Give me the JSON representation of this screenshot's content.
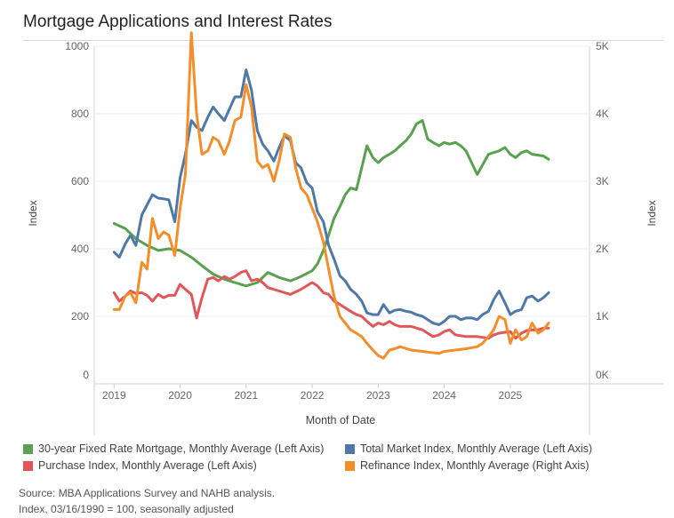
{
  "chart_data": {
    "type": "line",
    "title": "Mortgage Applications and Interest Rates",
    "xlabel": "Month of Date",
    "ylabel_left": "Index",
    "ylabel_right": "Index",
    "x_ticks": [
      "2019",
      "2020",
      "2021",
      "2022",
      "2023",
      "2024",
      "2025"
    ],
    "x_tick_values": [
      2019.0,
      2020.0,
      2021.0,
      2022.0,
      2023.0,
      2024.0,
      2025.0
    ],
    "xlim": [
      2018.7,
      2026.2
    ],
    "y_left_ticks": [
      "0",
      "200",
      "400",
      "600",
      "800",
      "1000"
    ],
    "y_left_tick_values": [
      0,
      200,
      400,
      600,
      800,
      1000
    ],
    "ylim_left": [
      0,
      1000
    ],
    "y_right_ticks": [
      "0K",
      "1K",
      "2K",
      "3K",
      "4K",
      "5K"
    ],
    "y_right_tick_values": [
      0,
      1000,
      2000,
      3000,
      4000,
      5000
    ],
    "ylim_right": [
      0,
      5000
    ],
    "grid": true,
    "legend_position": "bottom",
    "series": [
      {
        "name": "30-year Fixed Rate Mortgage, Monthly Average (Left Axis)",
        "axis": "left",
        "color": "#59a14f",
        "x": [
          2019.0,
          2019.17,
          2019.33,
          2019.5,
          2019.67,
          2019.83,
          2020.0,
          2020.17,
          2020.33,
          2020.5,
          2020.67,
          2020.83,
          2021.0,
          2021.17,
          2021.33,
          2021.5,
          2021.67,
          2021.83,
          2022.0,
          2022.08,
          2022.17,
          2022.25,
          2022.33,
          2022.42,
          2022.5,
          2022.58,
          2022.67,
          2022.75,
          2022.83,
          2022.92,
          2023.0,
          2023.08,
          2023.17,
          2023.25,
          2023.33,
          2023.42,
          2023.5,
          2023.58,
          2023.67,
          2023.75,
          2023.83,
          2023.92,
          2024.0,
          2024.08,
          2024.17,
          2024.25,
          2024.33,
          2024.5,
          2024.67,
          2024.83,
          2024.92,
          2025.0,
          2025.08,
          2025.17,
          2025.25,
          2025.33,
          2025.5,
          2025.58
        ],
        "values": [
          475,
          460,
          430,
          410,
          395,
          400,
          395,
          375,
          350,
          325,
          310,
          300,
          290,
          300,
          330,
          315,
          305,
          318,
          335,
          355,
          395,
          440,
          490,
          525,
          560,
          580,
          575,
          640,
          705,
          670,
          655,
          670,
          680,
          690,
          705,
          720,
          740,
          770,
          780,
          725,
          715,
          705,
          715,
          710,
          715,
          705,
          690,
          620,
          680,
          690,
          700,
          680,
          670,
          685,
          690,
          680,
          675,
          665
        ]
      },
      {
        "name": "Total Market Index, Monthly Average (Left Axis)",
        "axis": "left",
        "color": "#4e79a7",
        "x": [
          2019.0,
          2019.08,
          2019.17,
          2019.25,
          2019.33,
          2019.42,
          2019.5,
          2019.58,
          2019.67,
          2019.75,
          2019.83,
          2019.92,
          2020.0,
          2020.08,
          2020.17,
          2020.25,
          2020.33,
          2020.42,
          2020.5,
          2020.58,
          2020.67,
          2020.75,
          2020.83,
          2020.92,
          2021.0,
          2021.08,
          2021.17,
          2021.25,
          2021.33,
          2021.42,
          2021.5,
          2021.58,
          2021.67,
          2021.75,
          2021.83,
          2021.92,
          2022.0,
          2022.08,
          2022.17,
          2022.25,
          2022.33,
          2022.42,
          2022.5,
          2022.58,
          2022.67,
          2022.75,
          2022.83,
          2022.92,
          2023.0,
          2023.08,
          2023.17,
          2023.25,
          2023.33,
          2023.42,
          2023.5,
          2023.58,
          2023.67,
          2023.75,
          2023.83,
          2023.92,
          2024.0,
          2024.08,
          2024.17,
          2024.25,
          2024.33,
          2024.42,
          2024.5,
          2024.58,
          2024.67,
          2024.75,
          2024.83,
          2024.92,
          2025.0,
          2025.08,
          2025.17,
          2025.25,
          2025.33,
          2025.42,
          2025.5,
          2025.58
        ],
        "values": [
          390,
          375,
          415,
          440,
          410,
          500,
          530,
          560,
          550,
          548,
          545,
          480,
          610,
          680,
          780,
          760,
          750,
          790,
          820,
          800,
          780,
          815,
          850,
          850,
          930,
          870,
          750,
          710,
          690,
          660,
          700,
          735,
          720,
          655,
          640,
          595,
          580,
          510,
          480,
          410,
          370,
          320,
          305,
          280,
          265,
          245,
          210,
          205,
          205,
          235,
          210,
          218,
          220,
          215,
          212,
          205,
          200,
          190,
          180,
          175,
          185,
          200,
          200,
          190,
          195,
          195,
          190,
          205,
          215,
          250,
          275,
          240,
          205,
          215,
          220,
          255,
          260,
          245,
          255,
          270
        ]
      },
      {
        "name": "Purchase Index, Monthly Average (Left Axis)",
        "axis": "left",
        "color": "#e15759",
        "x": [
          2019.0,
          2019.08,
          2019.17,
          2019.25,
          2019.33,
          2019.42,
          2019.5,
          2019.58,
          2019.67,
          2019.75,
          2019.83,
          2019.92,
          2020.0,
          2020.08,
          2020.17,
          2020.25,
          2020.33,
          2020.42,
          2020.5,
          2020.58,
          2020.67,
          2020.75,
          2020.83,
          2020.92,
          2021.0,
          2021.08,
          2021.17,
          2021.25,
          2021.33,
          2021.5,
          2021.67,
          2021.83,
          2022.0,
          2022.08,
          2022.17,
          2022.25,
          2022.33,
          2022.42,
          2022.5,
          2022.58,
          2022.67,
          2022.75,
          2022.83,
          2022.92,
          2023.0,
          2023.08,
          2023.17,
          2023.25,
          2023.33,
          2023.5,
          2023.67,
          2023.75,
          2023.83,
          2023.92,
          2024.0,
          2024.08,
          2024.17,
          2024.33,
          2024.5,
          2024.67,
          2024.75,
          2024.83,
          2025.0,
          2025.08,
          2025.17,
          2025.25,
          2025.33,
          2025.42,
          2025.5,
          2025.58
        ],
        "values": [
          270,
          245,
          260,
          275,
          268,
          270,
          262,
          245,
          265,
          255,
          262,
          262,
          295,
          280,
          265,
          195,
          255,
          310,
          315,
          305,
          318,
          310,
          318,
          330,
          335,
          305,
          310,
          300,
          285,
          275,
          265,
          280,
          300,
          290,
          270,
          265,
          245,
          235,
          225,
          215,
          205,
          200,
          185,
          170,
          180,
          175,
          185,
          175,
          170,
          170,
          160,
          150,
          140,
          145,
          155,
          160,
          145,
          140,
          140,
          135,
          145,
          150,
          155,
          135,
          150,
          158,
          160,
          160,
          165,
          165
        ]
      },
      {
        "name": "Refinance Index, Monthly Average (Right Axis)",
        "axis": "right",
        "color": "#f28e2b",
        "x": [
          2019.0,
          2019.08,
          2019.17,
          2019.25,
          2019.33,
          2019.42,
          2019.5,
          2019.58,
          2019.67,
          2019.75,
          2019.83,
          2019.92,
          2020.0,
          2020.08,
          2020.17,
          2020.25,
          2020.33,
          2020.42,
          2020.5,
          2020.58,
          2020.67,
          2020.75,
          2020.83,
          2020.92,
          2021.0,
          2021.08,
          2021.17,
          2021.25,
          2021.33,
          2021.42,
          2021.5,
          2021.58,
          2021.67,
          2021.75,
          2021.83,
          2021.92,
          2022.0,
          2022.08,
          2022.17,
          2022.25,
          2022.33,
          2022.42,
          2022.5,
          2022.58,
          2022.67,
          2022.75,
          2022.83,
          2022.92,
          2023.0,
          2023.08,
          2023.17,
          2023.25,
          2023.33,
          2023.5,
          2023.67,
          2023.75,
          2023.83,
          2023.92,
          2024.0,
          2024.17,
          2024.33,
          2024.5,
          2024.58,
          2024.67,
          2024.75,
          2024.83,
          2024.92,
          2025.0,
          2025.08,
          2025.17,
          2025.25,
          2025.33,
          2025.42,
          2025.5,
          2025.58
        ],
        "values": [
          1100,
          1100,
          1300,
          1350,
          1200,
          1800,
          1700,
          2450,
          2150,
          2250,
          2200,
          1900,
          2600,
          3100,
          5200,
          4000,
          3400,
          3450,
          3650,
          3600,
          3400,
          3600,
          3900,
          3950,
          4430,
          4100,
          3300,
          3200,
          3250,
          3000,
          3300,
          3700,
          3650,
          3200,
          2900,
          2800,
          2600,
          2400,
          2100,
          1700,
          1300,
          1000,
          900,
          800,
          750,
          700,
          600,
          500,
          420,
          380,
          500,
          520,
          550,
          500,
          480,
          470,
          460,
          450,
          480,
          500,
          520,
          550,
          600,
          700,
          800,
          1000,
          950,
          600,
          800,
          650,
          700,
          900,
          750,
          800,
          900
        ]
      }
    ],
    "source_note": [
      "Source: MBA Applications Survey and NAHB analysis.",
      "Index, 03/16/1990 = 100, seasonally adjusted"
    ]
  }
}
